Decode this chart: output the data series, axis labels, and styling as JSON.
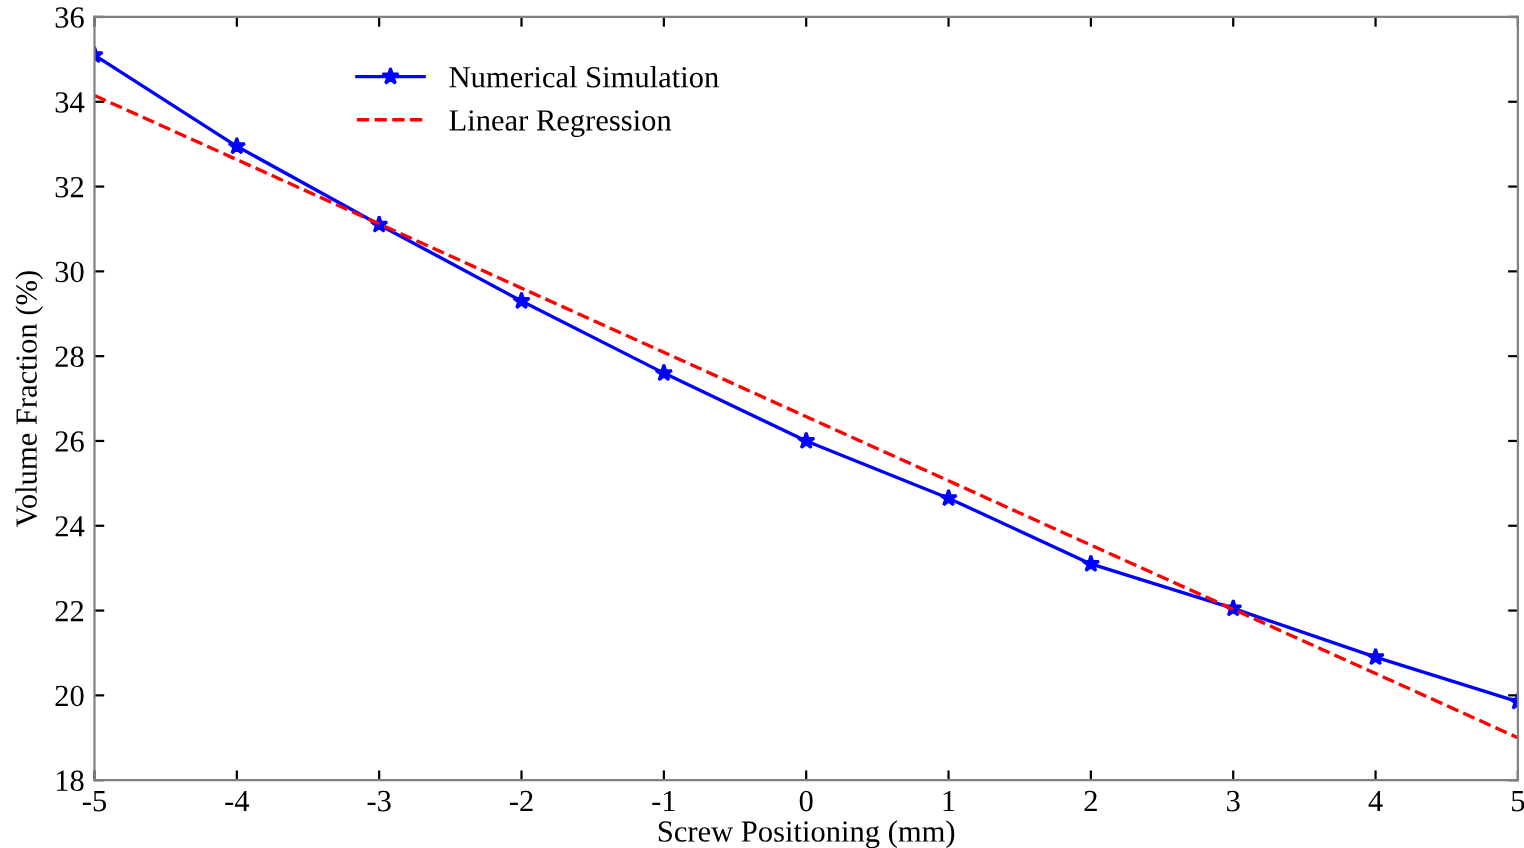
{
  "chart_data": {
    "type": "line",
    "xlabel": "Screw Positioning (mm)",
    "ylabel": "Volume Fraction (%)",
    "xlim": [
      -5,
      5
    ],
    "xticks": [
      -5,
      -4,
      -3,
      -2,
      -1,
      0,
      1,
      2,
      3,
      4,
      5
    ],
    "ylim": [
      18,
      36
    ],
    "yticks": [
      18,
      20,
      22,
      24,
      26,
      28,
      30,
      32,
      34,
      36
    ],
    "grid": false,
    "legend": "top left",
    "series": [
      {
        "name": "Numerical Simulation",
        "color": "#0000ff",
        "marker": "star",
        "line_style": "solid",
        "x": [
          -5,
          -4,
          -3,
          -2,
          -1,
          0,
          1,
          2,
          3,
          4,
          5
        ],
        "values": [
          35.1,
          32.95,
          31.1,
          29.3,
          27.6,
          26.0,
          24.65,
          23.1,
          22.05,
          20.9,
          19.85
        ]
      },
      {
        "name": "Linear Regression",
        "color": "#ff0000",
        "marker": "none",
        "line_style": "dashed",
        "x": [
          -5,
          5
        ],
        "values": [
          34.15,
          19.0
        ]
      }
    ]
  }
}
